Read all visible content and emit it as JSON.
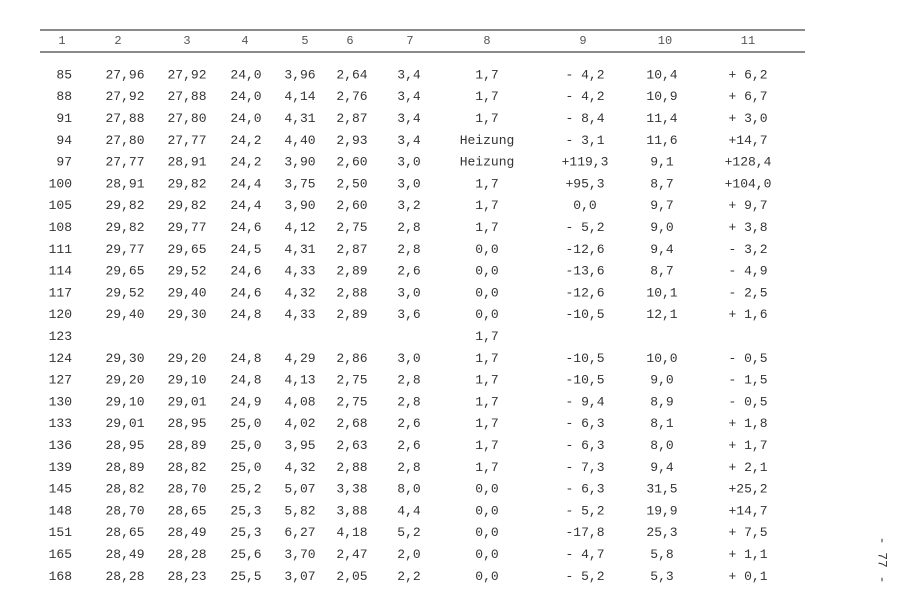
{
  "table": {
    "header": [
      "1",
      "2",
      "3",
      "4",
      "5",
      "6",
      "7",
      "8",
      "9",
      "10",
      "11"
    ],
    "rows": [
      [
        "85",
        "27,96",
        "27,92",
        "24,0",
        "3,96",
        "2,64",
        "3,4",
        "1,7",
        "- 4,2",
        "10,4",
        "+ 6,2"
      ],
      [
        "88",
        "27,92",
        "27,88",
        "24,0",
        "4,14",
        "2,76",
        "3,4",
        "1,7",
        "- 4,2",
        "10,9",
        "+ 6,7"
      ],
      [
        "91",
        "27,88",
        "27,80",
        "24,0",
        "4,31",
        "2,87",
        "3,4",
        "1,7",
        "- 8,4",
        "11,4",
        "+ 3,0"
      ],
      [
        "94",
        "27,80",
        "27,77",
        "24,2",
        "4,40",
        "2,93",
        "3,4",
        "Heizung",
        "- 3,1",
        "11,6",
        "+14,7"
      ],
      [
        "97",
        "27,77",
        "28,91",
        "24,2",
        "3,90",
        "2,60",
        "3,0",
        "Heizung",
        "+119,3",
        "9,1",
        "+128,4"
      ],
      [
        "100",
        "28,91",
        "29,82",
        "24,4",
        "3,75",
        "2,50",
        "3,0",
        "1,7",
        "+95,3",
        "8,7",
        "+104,0"
      ],
      [
        "105",
        "29,82",
        "29,82",
        "24,4",
        "3,90",
        "2,60",
        "3,2",
        "1,7",
        "0,0",
        "9,7",
        "+ 9,7"
      ],
      [
        "108",
        "29,82",
        "29,77",
        "24,6",
        "4,12",
        "2,75",
        "2,8",
        "1,7",
        "- 5,2",
        "9,0",
        "+ 3,8"
      ],
      [
        "111",
        "29,77",
        "29,65",
        "24,5",
        "4,31",
        "2,87",
        "2,8",
        "0,0",
        "-12,6",
        "9,4",
        "- 3,2"
      ],
      [
        "114",
        "29,65",
        "29,52",
        "24,6",
        "4,33",
        "2,89",
        "2,6",
        "0,0",
        "-13,6",
        "8,7",
        "- 4,9"
      ],
      [
        "117",
        "29,52",
        "29,40",
        "24,6",
        "4,32",
        "2,88",
        "3,0",
        "0,0",
        "-12,6",
        "10,1",
        "- 2,5"
      ],
      [
        "120",
        "29,40",
        "29,30",
        "24,8",
        "4,33",
        "2,89",
        "3,6",
        "0,0",
        "-10,5",
        "12,1",
        "+ 1,6"
      ],
      [
        "123",
        null,
        null,
        null,
        null,
        null,
        null,
        "1,7",
        null,
        null,
        null
      ],
      [
        "124",
        "29,30",
        "29,20",
        "24,8",
        "4,29",
        "2,86",
        "3,0",
        "1,7",
        "-10,5",
        "10,0",
        "- 0,5"
      ],
      [
        "127",
        "29,20",
        "29,10",
        "24,8",
        "4,13",
        "2,75",
        "2,8",
        "1,7",
        "-10,5",
        "9,0",
        "- 1,5"
      ],
      [
        "130",
        "29,10",
        "29,01",
        "24,9",
        "4,08",
        "2,75",
        "2,8",
        "1,7",
        "- 9,4",
        "8,9",
        "- 0,5"
      ],
      [
        "133",
        "29,01",
        "28,95",
        "25,0",
        "4,02",
        "2,68",
        "2,6",
        "1,7",
        "- 6,3",
        "8,1",
        "+ 1,8"
      ],
      [
        "136",
        "28,95",
        "28,89",
        "25,0",
        "3,95",
        "2,63",
        "2,6",
        "1,7",
        "- 6,3",
        "8,0",
        "+ 1,7"
      ],
      [
        "139",
        "28,89",
        "28,82",
        "25,0",
        "4,32",
        "2,88",
        "2,8",
        "1,7",
        "- 7,3",
        "9,4",
        "+ 2,1"
      ],
      [
        "145",
        "28,82",
        "28,70",
        "25,2",
        "5,07",
        "3,38",
        "8,0",
        "0,0",
        "- 6,3",
        "31,5",
        "+25,2"
      ],
      [
        "148",
        "28,70",
        "28,65",
        "25,3",
        "5,82",
        "3,88",
        "4,4",
        "0,0",
        "- 5,2",
        "19,9",
        "+14,7"
      ],
      [
        "151",
        "28,65",
        "28,49",
        "25,3",
        "6,27",
        "4,18",
        "5,2",
        "0,0",
        "-17,8",
        "25,3",
        "+ 7,5"
      ],
      [
        "165",
        "28,49",
        "28,28",
        "25,6",
        "3,70",
        "2,47",
        "2,0",
        "0,0",
        "- 4,7",
        "5,8",
        "+ 1,1"
      ],
      [
        "168",
        "28,28",
        "28,23",
        "25,5",
        "3,07",
        "2,05",
        "2,2",
        "0,0",
        "- 5,2",
        "5,3",
        "+ 0,1"
      ]
    ]
  },
  "page_number": "- 77 -"
}
